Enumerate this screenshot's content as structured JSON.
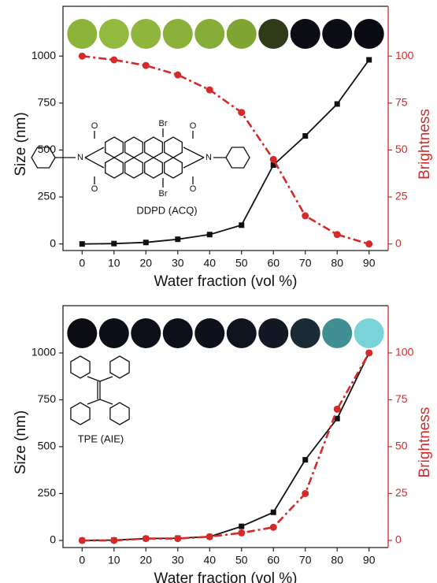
{
  "chart_data": [
    {
      "type": "line",
      "x": [
        0,
        10,
        20,
        30,
        40,
        50,
        60,
        70,
        80,
        90
      ],
      "xlim": [
        -6,
        96
      ],
      "xticks": [
        0,
        10,
        20,
        30,
        40,
        50,
        60,
        70,
        80,
        90
      ],
      "ylim": [
        -35,
        1265
      ],
      "yticks": [
        0,
        250,
        500,
        750,
        1000
      ],
      "y2lim": [
        -3.5,
        126.5
      ],
      "y2ticks": [
        0,
        25,
        50,
        75,
        100
      ],
      "xlabel": "Water fraction (vol %)",
      "ylabel": "Size (nm)",
      "y2label": "Brightness",
      "y2_color": "#d42a2a",
      "annotation": "DDPD (ACQ)",
      "atom_labels": [
        "Br",
        "Br",
        "O",
        "O",
        "O",
        "O",
        "N",
        "N"
      ],
      "series": [
        {
          "color": "#111111",
          "marker": "square",
          "line_style": "solid",
          "axis": "y",
          "values": [
            0,
            2,
            8,
            25,
            50,
            100,
            420,
            575,
            745,
            980
          ]
        },
        {
          "color": "#d42a2a",
          "marker": "circle",
          "line_style": "dashdot",
          "axis": "y2",
          "values": [
            100,
            98,
            95,
            90,
            82,
            70,
            45,
            15,
            5,
            0
          ]
        }
      ]
    },
    {
      "type": "line",
      "x": [
        0,
        10,
        20,
        30,
        40,
        50,
        60,
        70,
        80,
        90
      ],
      "xlim": [
        -6,
        96
      ],
      "xticks": [
        0,
        10,
        20,
        30,
        40,
        50,
        60,
        70,
        80,
        90
      ],
      "ylim": [
        -38,
        1252
      ],
      "yticks": [
        0,
        250,
        500,
        750,
        1000
      ],
      "y2lim": [
        -3.8,
        125.2
      ],
      "y2ticks": [
        0,
        25,
        50,
        75,
        100
      ],
      "xlabel": "Water fraction (vol %)",
      "ylabel": "Size (nm)",
      "y2label": "Brightness",
      "y2_color": "#d42a2a",
      "annotation": "TPE (AIE)",
      "series": [
        {
          "color": "#111111",
          "marker": "square",
          "line_style": "solid",
          "axis": "y",
          "values": [
            0,
            2,
            10,
            12,
            20,
            75,
            150,
            430,
            650,
            1000
          ]
        },
        {
          "color": "#d42a2a",
          "marker": "circle",
          "line_style": "dashdot",
          "axis": "y2",
          "values": [
            0,
            0,
            1,
            1,
            2,
            4,
            7,
            25,
            70,
            100
          ]
        }
      ]
    }
  ]
}
